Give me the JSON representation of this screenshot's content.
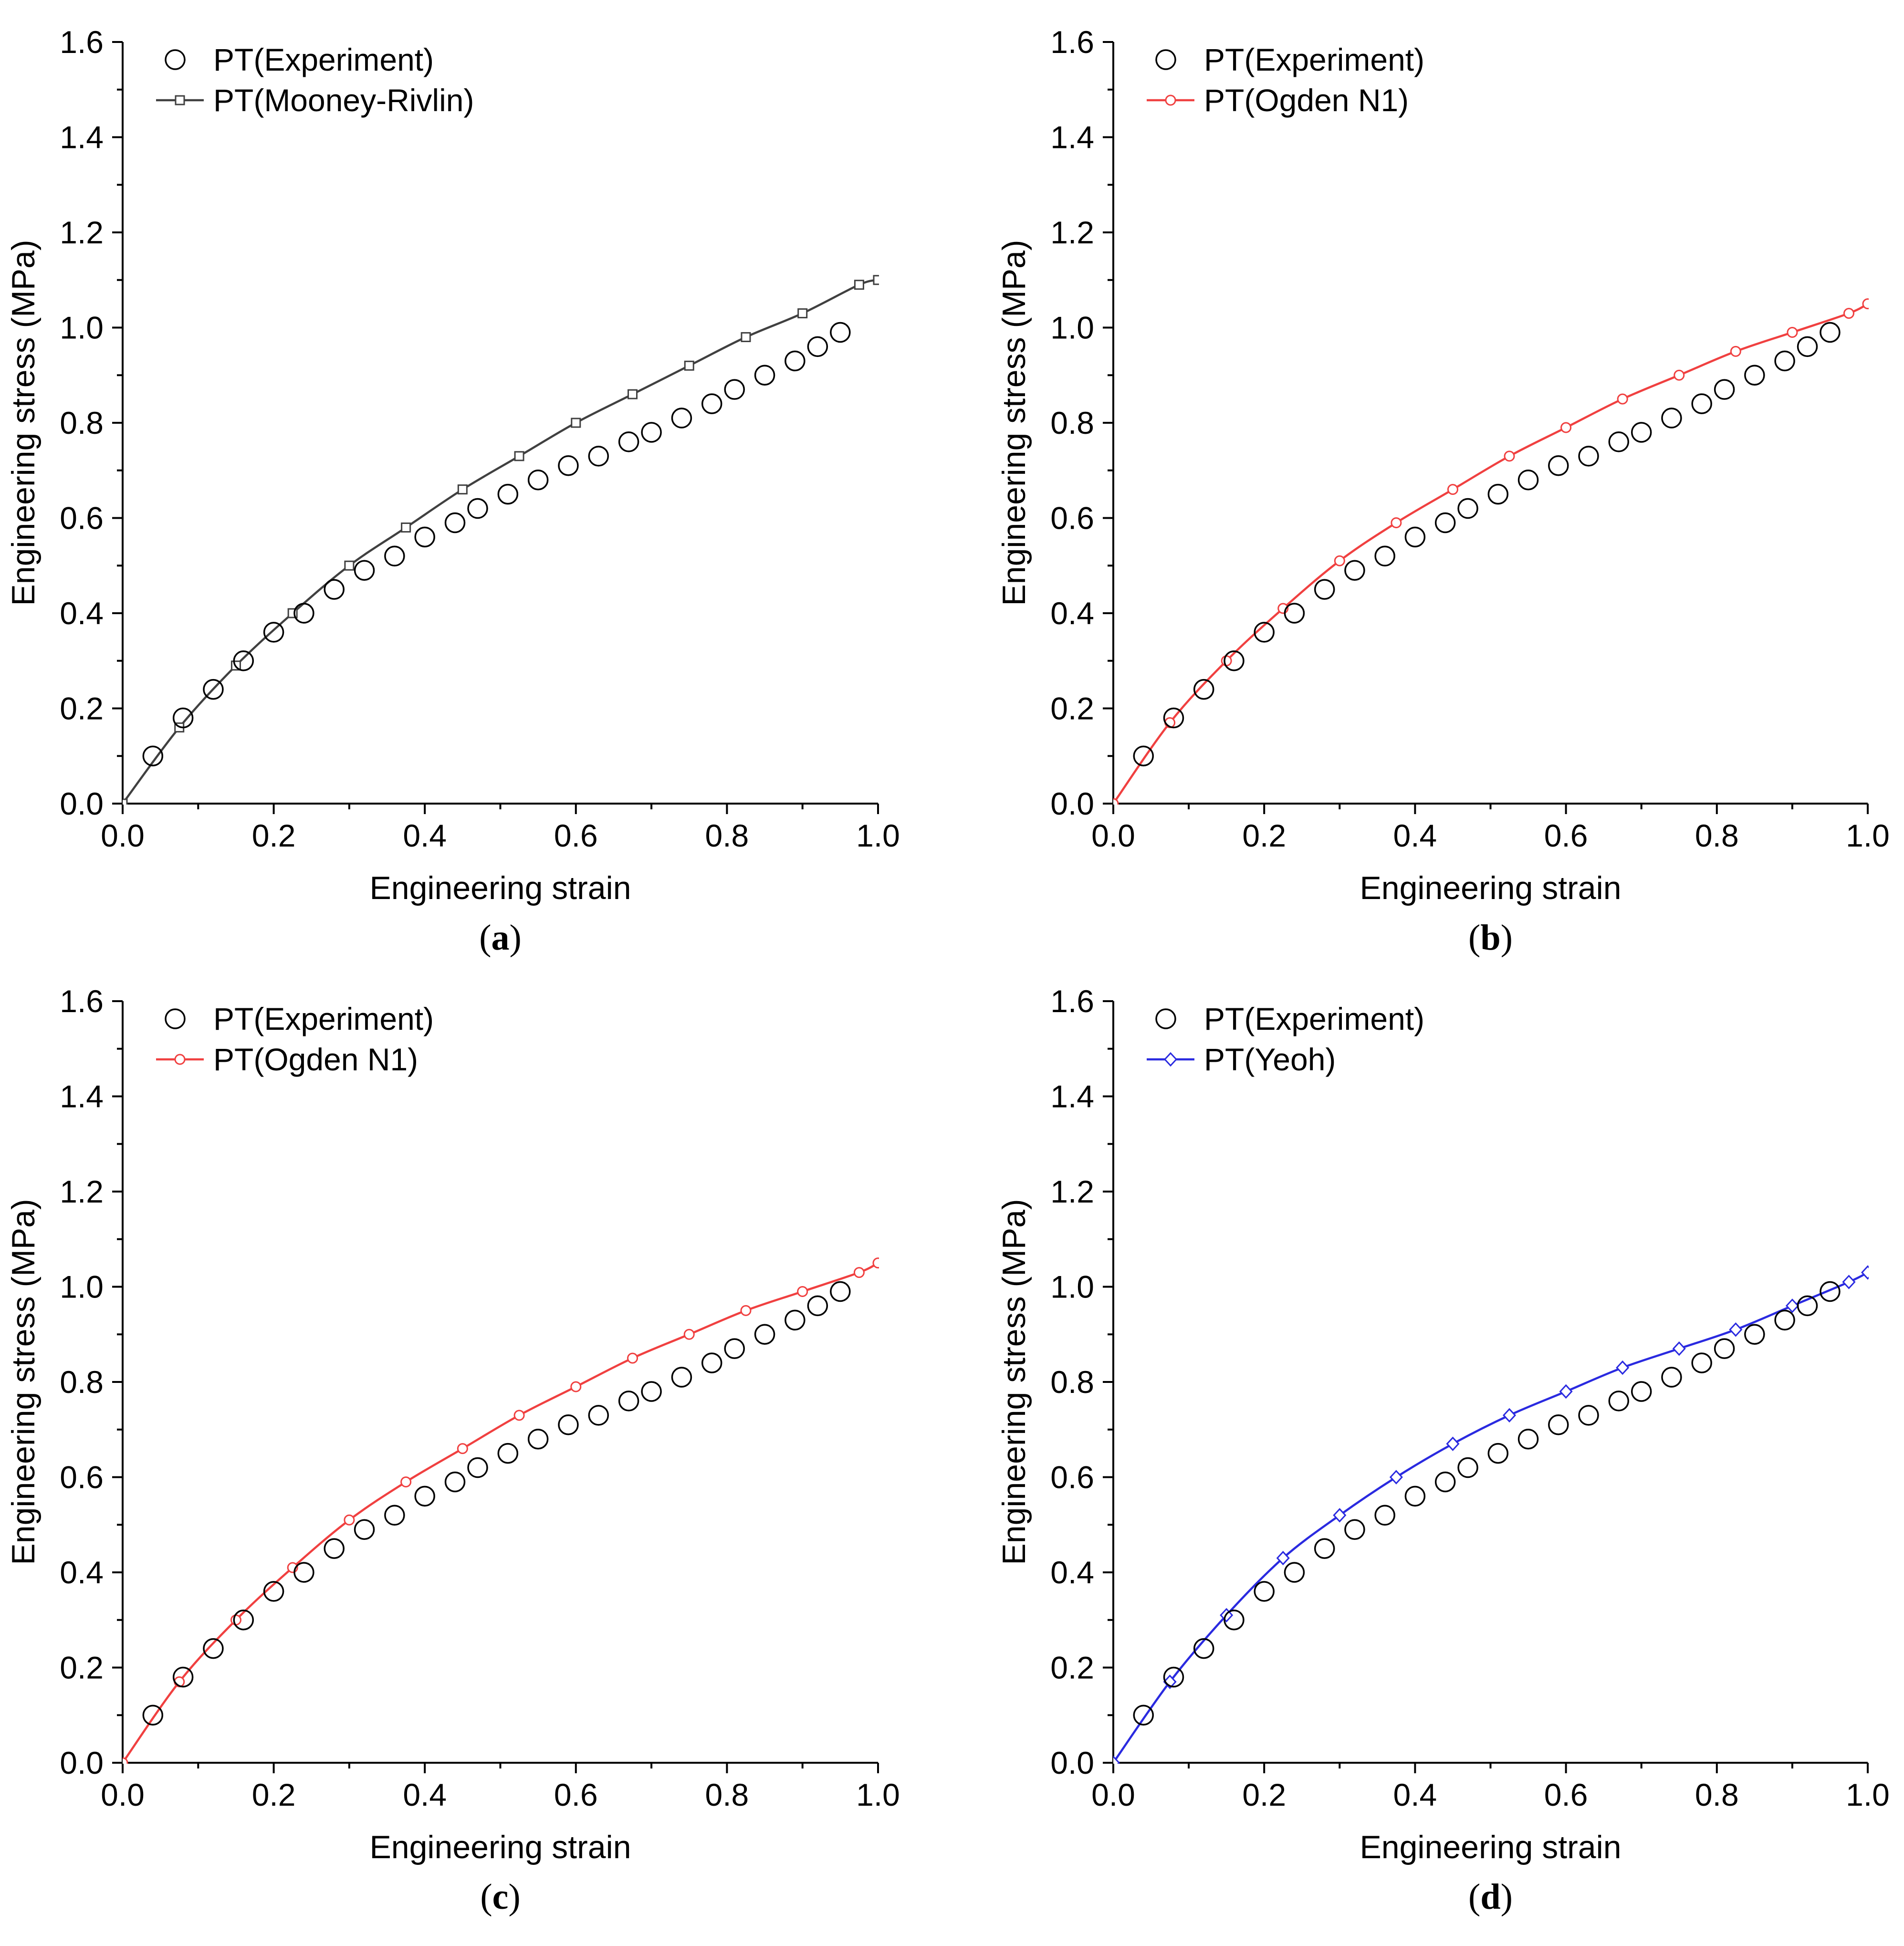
{
  "chart_data": [
    {
      "type": "line",
      "panel": "a",
      "caption_letter": "a",
      "xlabel": "Engineering strain",
      "ylabel": "Engineering stress (MPa)",
      "xlim": [
        0.0,
        1.0
      ],
      "ylim": [
        0.0,
        1.6
      ],
      "x_ticks": [
        "0.0",
        "0.2",
        "0.4",
        "0.6",
        "0.8",
        "1.0"
      ],
      "y_ticks": [
        "0.0",
        "0.2",
        "0.4",
        "0.6",
        "0.8",
        "1.0",
        "1.2",
        "1.4",
        "1.6"
      ],
      "legend_position": "top-left",
      "experiment": {
        "name": "PT(Experiment)",
        "x": [
          0.04,
          0.08,
          0.12,
          0.16,
          0.2,
          0.24,
          0.28,
          0.32,
          0.36,
          0.4,
          0.44,
          0.47,
          0.51,
          0.55,
          0.59,
          0.63,
          0.67,
          0.7,
          0.74,
          0.78,
          0.81,
          0.85,
          0.89,
          0.92,
          0.95
        ],
        "y": [
          0.1,
          0.18,
          0.24,
          0.3,
          0.36,
          0.4,
          0.45,
          0.49,
          0.52,
          0.56,
          0.59,
          0.62,
          0.65,
          0.68,
          0.71,
          0.73,
          0.76,
          0.78,
          0.81,
          0.84,
          0.87,
          0.9,
          0.93,
          0.96,
          0.99
        ]
      },
      "model": {
        "name": "PT(Mooney-Rivlin)",
        "color": "#404040",
        "marker": "square",
        "x": [
          0.0,
          0.075,
          0.15,
          0.225,
          0.3,
          0.375,
          0.45,
          0.525,
          0.6,
          0.675,
          0.75,
          0.825,
          0.9,
          0.975,
          1.0
        ],
        "y": [
          0.0,
          0.16,
          0.29,
          0.4,
          0.5,
          0.58,
          0.66,
          0.73,
          0.8,
          0.86,
          0.92,
          0.98,
          1.03,
          1.09,
          1.1
        ]
      }
    },
    {
      "type": "line",
      "panel": "b",
      "caption_letter": "b",
      "xlabel": "Engineering strain",
      "ylabel": "Engineering stress (MPa)",
      "xlim": [
        0.0,
        1.0
      ],
      "ylim": [
        0.0,
        1.6
      ],
      "x_ticks": [
        "0.0",
        "0.2",
        "0.4",
        "0.6",
        "0.8",
        "1.0"
      ],
      "y_ticks": [
        "0.0",
        "0.2",
        "0.4",
        "0.6",
        "0.8",
        "1.0",
        "1.2",
        "1.4",
        "1.6"
      ],
      "legend_position": "top-left",
      "experiment": {
        "name": "PT(Experiment)",
        "x": [
          0.04,
          0.08,
          0.12,
          0.16,
          0.2,
          0.24,
          0.28,
          0.32,
          0.36,
          0.4,
          0.44,
          0.47,
          0.51,
          0.55,
          0.59,
          0.63,
          0.67,
          0.7,
          0.74,
          0.78,
          0.81,
          0.85,
          0.89,
          0.92,
          0.95
        ],
        "y": [
          0.1,
          0.18,
          0.24,
          0.3,
          0.36,
          0.4,
          0.45,
          0.49,
          0.52,
          0.56,
          0.59,
          0.62,
          0.65,
          0.68,
          0.71,
          0.73,
          0.76,
          0.78,
          0.81,
          0.84,
          0.87,
          0.9,
          0.93,
          0.96,
          0.99
        ]
      },
      "model": {
        "name": "PT(Ogden N1)",
        "color": "#f04040",
        "marker": "circle",
        "x": [
          0.0,
          0.075,
          0.15,
          0.225,
          0.3,
          0.375,
          0.45,
          0.525,
          0.6,
          0.675,
          0.75,
          0.825,
          0.9,
          0.975,
          1.0
        ],
        "y": [
          0.0,
          0.17,
          0.3,
          0.41,
          0.51,
          0.59,
          0.66,
          0.73,
          0.79,
          0.85,
          0.9,
          0.95,
          0.99,
          1.03,
          1.05
        ]
      }
    },
    {
      "type": "line",
      "panel": "c",
      "caption_letter": "c",
      "xlabel": "Engineering strain",
      "ylabel": "Engineering stress (MPa)",
      "xlim": [
        0.0,
        1.0
      ],
      "ylim": [
        0.0,
        1.6
      ],
      "x_ticks": [
        "0.0",
        "0.2",
        "0.4",
        "0.6",
        "0.8",
        "1.0"
      ],
      "y_ticks": [
        "0.0",
        "0.2",
        "0.4",
        "0.6",
        "0.8",
        "1.0",
        "1.2",
        "1.4",
        "1.6"
      ],
      "legend_position": "top-left",
      "experiment": {
        "name": "PT(Experiment)",
        "x": [
          0.04,
          0.08,
          0.12,
          0.16,
          0.2,
          0.24,
          0.28,
          0.32,
          0.36,
          0.4,
          0.44,
          0.47,
          0.51,
          0.55,
          0.59,
          0.63,
          0.67,
          0.7,
          0.74,
          0.78,
          0.81,
          0.85,
          0.89,
          0.92,
          0.95
        ],
        "y": [
          0.1,
          0.18,
          0.24,
          0.3,
          0.36,
          0.4,
          0.45,
          0.49,
          0.52,
          0.56,
          0.59,
          0.62,
          0.65,
          0.68,
          0.71,
          0.73,
          0.76,
          0.78,
          0.81,
          0.84,
          0.87,
          0.9,
          0.93,
          0.96,
          0.99
        ]
      },
      "model": {
        "name": "PT(Ogden N1)",
        "color": "#f04040",
        "marker": "circle",
        "x": [
          0.0,
          0.075,
          0.15,
          0.225,
          0.3,
          0.375,
          0.45,
          0.525,
          0.6,
          0.675,
          0.75,
          0.825,
          0.9,
          0.975,
          1.0
        ],
        "y": [
          0.0,
          0.17,
          0.3,
          0.41,
          0.51,
          0.59,
          0.66,
          0.73,
          0.79,
          0.85,
          0.9,
          0.95,
          0.99,
          1.03,
          1.05
        ]
      }
    },
    {
      "type": "line",
      "panel": "d",
      "caption_letter": "d",
      "xlabel": "Engineering strain",
      "ylabel": "Engineering stress (MPa)",
      "xlim": [
        0.0,
        1.0
      ],
      "ylim": [
        0.0,
        1.6
      ],
      "x_ticks": [
        "0.0",
        "0.2",
        "0.4",
        "0.6",
        "0.8",
        "1.0"
      ],
      "y_ticks": [
        "0.0",
        "0.2",
        "0.4",
        "0.6",
        "0.8",
        "1.0",
        "1.2",
        "1.4",
        "1.6"
      ],
      "legend_position": "top-left",
      "experiment": {
        "name": "PT(Experiment)",
        "x": [
          0.04,
          0.08,
          0.12,
          0.16,
          0.2,
          0.24,
          0.28,
          0.32,
          0.36,
          0.4,
          0.44,
          0.47,
          0.51,
          0.55,
          0.59,
          0.63,
          0.67,
          0.7,
          0.74,
          0.78,
          0.81,
          0.85,
          0.89,
          0.92,
          0.95
        ],
        "y": [
          0.1,
          0.18,
          0.24,
          0.3,
          0.36,
          0.4,
          0.45,
          0.49,
          0.52,
          0.56,
          0.59,
          0.62,
          0.65,
          0.68,
          0.71,
          0.73,
          0.76,
          0.78,
          0.81,
          0.84,
          0.87,
          0.9,
          0.93,
          0.96,
          0.99
        ]
      },
      "model": {
        "name": "PT(Yeoh)",
        "color": "#2a2ae0",
        "marker": "diamond",
        "x": [
          0.0,
          0.075,
          0.15,
          0.225,
          0.3,
          0.375,
          0.45,
          0.525,
          0.6,
          0.675,
          0.75,
          0.825,
          0.9,
          0.975,
          1.0
        ],
        "y": [
          0.0,
          0.17,
          0.31,
          0.43,
          0.52,
          0.6,
          0.67,
          0.73,
          0.78,
          0.83,
          0.87,
          0.91,
          0.96,
          1.01,
          1.03
        ]
      }
    }
  ]
}
